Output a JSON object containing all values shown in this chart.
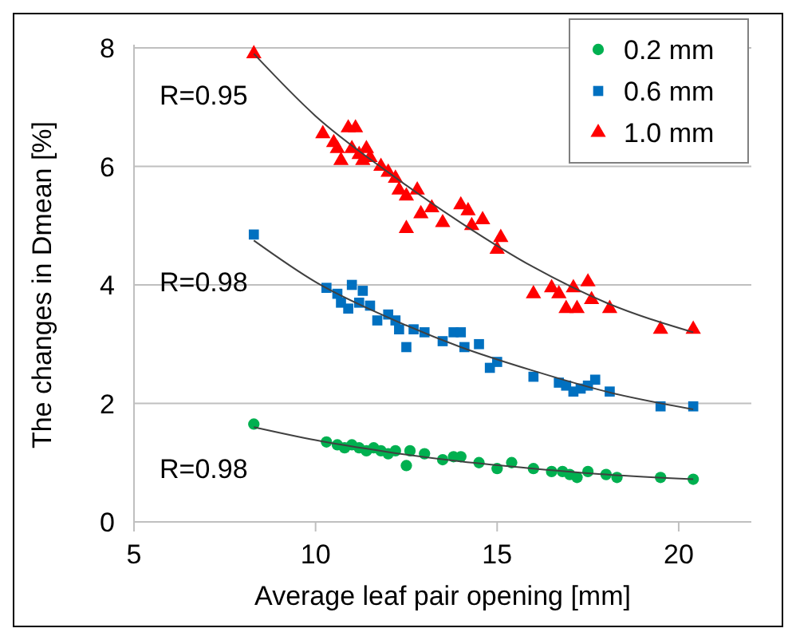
{
  "chart_data": {
    "type": "scatter",
    "xlabel": "Average leaf pair opening [mm]",
    "ylabel": "The changes in Dmean [%]",
    "xlim": [
      5,
      22
    ],
    "xticks": [
      5,
      10,
      15,
      20
    ],
    "ylim": [
      0,
      8
    ],
    "yticks": [
      0,
      2,
      4,
      6,
      8
    ],
    "grid": "y",
    "legend": "top right",
    "annotations": [
      "R=0.95",
      "R=0.98",
      "R=0.98"
    ],
    "series": [
      {
        "name": "0.2 mm",
        "color": "#00b050",
        "marker": "circle",
        "x": [
          8.3,
          10.3,
          10.6,
          10.8,
          11.0,
          11.2,
          11.4,
          11.6,
          11.8,
          12.0,
          12.2,
          12.5,
          12.6,
          13.0,
          13.5,
          13.8,
          14.0,
          14.5,
          15.0,
          15.4,
          16,
          16.5,
          16.8,
          17.0,
          17.2,
          17.5,
          18,
          18.3,
          19.5,
          20.4
        ],
        "values": [
          1.65,
          1.35,
          1.3,
          1.25,
          1.3,
          1.25,
          1.2,
          1.25,
          1.2,
          1.15,
          1.2,
          0.95,
          1.2,
          1.15,
          1.05,
          1.1,
          1.1,
          1.0,
          0.9,
          1.0,
          0.9,
          0.85,
          0.85,
          0.8,
          0.75,
          0.85,
          0.8,
          0.75,
          0.75,
          0.72
        ]
      },
      {
        "name": "0.6 mm",
        "color": "#0070c0",
        "marker": "square",
        "x": [
          8.3,
          10.3,
          10.6,
          10.7,
          10.9,
          11.0,
          11.3,
          11.2,
          11.5,
          11.7,
          12.0,
          12.2,
          12.3,
          12.5,
          12.7,
          13.0,
          13.5,
          13.8,
          14.0,
          14.1,
          14.5,
          14.8,
          15.0,
          16,
          16.7,
          16.9,
          17.1,
          17.3,
          17.5,
          17.7,
          18.1,
          19.5,
          20.4
        ],
        "values": [
          4.85,
          3.95,
          3.85,
          3.7,
          3.6,
          4.0,
          3.9,
          3.7,
          3.65,
          3.4,
          3.5,
          3.4,
          3.25,
          2.95,
          3.25,
          3.2,
          3.05,
          3.2,
          3.2,
          2.95,
          3.0,
          2.6,
          2.7,
          2.45,
          2.35,
          2.3,
          2.2,
          2.25,
          2.3,
          2.4,
          2.2,
          1.95,
          1.95
        ]
      },
      {
        "name": "1.0 mm",
        "color": "#ff0000",
        "marker": "triangle",
        "x": [
          8.3,
          10.2,
          10.5,
          10.6,
          10.7,
          10.9,
          11.1,
          11.0,
          11.2,
          11.3,
          11.4,
          11.5,
          11.8,
          12.0,
          12.2,
          12.3,
          12.5,
          12.5,
          12.8,
          13.2,
          12.9,
          13.5,
          14,
          14.2,
          14.3,
          14.6,
          15.0,
          15.1,
          16.0,
          16.5,
          16.7,
          16.9,
          17.2,
          17.1,
          17.5,
          17.6,
          18.1,
          19.5,
          20.4
        ],
        "values": [
          7.9,
          6.55,
          6.4,
          6.3,
          6.1,
          6.65,
          6.65,
          6.3,
          6.2,
          6.1,
          6.3,
          6.15,
          6.0,
          5.9,
          5.8,
          5.6,
          5.5,
          4.95,
          5.6,
          5.3,
          5.2,
          5.05,
          5.35,
          5.25,
          5.0,
          5.1,
          4.6,
          4.8,
          3.85,
          3.95,
          3.85,
          3.6,
          3.6,
          3.95,
          4.05,
          3.75,
          3.6,
          3.25,
          3.25
        ]
      },
      {
        "type": "line",
        "color": "#404040",
        "marker": "none",
        "x": [
          8.3,
          10,
          12,
          14,
          16,
          18,
          20.4
        ],
        "values": [
          1.6,
          1.38,
          1.18,
          1.02,
          0.9,
          0.8,
          0.72
        ]
      },
      {
        "type": "line",
        "color": "#404040",
        "marker": "none",
        "x": [
          8.3,
          10,
          12,
          14,
          16,
          18,
          20.4
        ],
        "values": [
          4.75,
          4.05,
          3.45,
          2.95,
          2.55,
          2.2,
          1.9
        ]
      },
      {
        "type": "line",
        "color": "#404040",
        "marker": "none",
        "x": [
          8.3,
          10,
          12,
          14,
          16,
          18,
          20.4
        ],
        "values": [
          7.9,
          6.85,
          5.9,
          5.05,
          4.3,
          3.7,
          3.2
        ]
      }
    ]
  }
}
